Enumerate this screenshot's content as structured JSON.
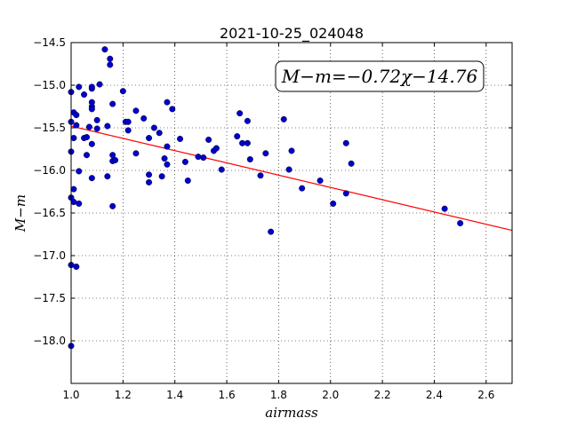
{
  "chart_data": {
    "type": "scatter",
    "title": "2021-10-25_024048",
    "xlabel": "airmass",
    "ylabel": "M−m",
    "xlim": [
      1.0,
      2.7
    ],
    "ylim": [
      -14.5,
      -18.5
    ],
    "y_inverted": true,
    "grid": true,
    "x_ticks": [
      1.0,
      1.2,
      1.4,
      1.6,
      1.8,
      2.0,
      2.2,
      2.4,
      2.6
    ],
    "x_tick_labels": [
      "1.0",
      "1.2",
      "1.4",
      "1.6",
      "1.8",
      "2.0",
      "2.2",
      "2.4",
      "2.6"
    ],
    "y_ticks": [
      -14.5,
      -15.0,
      -15.5,
      -16.0,
      -16.5,
      -17.0,
      -17.5,
      -18.0
    ],
    "y_tick_labels": [
      "−14.5",
      "−15.0",
      "−15.5",
      "−16.0",
      "−16.5",
      "−17.0",
      "−17.5",
      "−18.0"
    ],
    "fit_label": "M−m=−0.72χ−14.76",
    "fit_label_position": "top-right",
    "fit": {
      "slope": -0.72,
      "intercept": -14.76,
      "color": "#ff0000"
    },
    "point_color": "#0000cc",
    "points": [
      [
        1.0,
        -15.08
      ],
      [
        1.0,
        -15.43
      ],
      [
        1.0,
        -15.78
      ],
      [
        1.0,
        -16.32
      ],
      [
        1.0,
        -17.11
      ],
      [
        1.0,
        -18.06
      ],
      [
        1.01,
        -15.32
      ],
      [
        1.01,
        -15.62
      ],
      [
        1.01,
        -16.22
      ],
      [
        1.01,
        -16.37
      ],
      [
        1.02,
        -17.13
      ],
      [
        1.02,
        -15.35
      ],
      [
        1.02,
        -15.47
      ],
      [
        1.03,
        -15.02
      ],
      [
        1.03,
        -16.01
      ],
      [
        1.03,
        -16.39
      ],
      [
        1.05,
        -15.11
      ],
      [
        1.05,
        -15.62
      ],
      [
        1.06,
        -15.61
      ],
      [
        1.06,
        -15.82
      ],
      [
        1.07,
        -15.49
      ],
      [
        1.08,
        -15.04
      ],
      [
        1.08,
        -15.02
      ],
      [
        1.08,
        -15.2
      ],
      [
        1.08,
        -15.25
      ],
      [
        1.08,
        -15.28
      ],
      [
        1.08,
        -15.69
      ],
      [
        1.08,
        -16.09
      ],
      [
        1.1,
        -15.41
      ],
      [
        1.1,
        -15.51
      ],
      [
        1.11,
        -14.99
      ],
      [
        1.13,
        -14.58
      ],
      [
        1.14,
        -15.48
      ],
      [
        1.14,
        -16.07
      ],
      [
        1.15,
        -14.76
      ],
      [
        1.15,
        -14.69
      ],
      [
        1.16,
        -15.22
      ],
      [
        1.16,
        -15.82
      ],
      [
        1.16,
        -15.89
      ],
      [
        1.17,
        -15.88
      ],
      [
        1.16,
        -16.42
      ],
      [
        1.2,
        -15.07
      ],
      [
        1.21,
        -15.43
      ],
      [
        1.22,
        -15.43
      ],
      [
        1.22,
        -15.53
      ],
      [
        1.25,
        -15.3
      ],
      [
        1.25,
        -15.8
      ],
      [
        1.28,
        -15.39
      ],
      [
        1.3,
        -15.62
      ],
      [
        1.3,
        -16.05
      ],
      [
        1.3,
        -16.14
      ],
      [
        1.32,
        -15.5
      ],
      [
        1.34,
        -15.56
      ],
      [
        1.35,
        -16.07
      ],
      [
        1.36,
        -15.86
      ],
      [
        1.37,
        -15.2
      ],
      [
        1.37,
        -15.72
      ],
      [
        1.37,
        -15.93
      ],
      [
        1.39,
        -15.28
      ],
      [
        1.42,
        -15.63
      ],
      [
        1.44,
        -15.9
      ],
      [
        1.45,
        -16.12
      ],
      [
        1.49,
        -15.84
      ],
      [
        1.51,
        -15.85
      ],
      [
        1.53,
        -15.64
      ],
      [
        1.55,
        -15.77
      ],
      [
        1.56,
        -15.74
      ],
      [
        1.58,
        -15.99
      ],
      [
        1.64,
        -15.6
      ],
      [
        1.65,
        -15.33
      ],
      [
        1.66,
        -15.68
      ],
      [
        1.68,
        -15.42
      ],
      [
        1.68,
        -15.68
      ],
      [
        1.69,
        -15.87
      ],
      [
        1.73,
        -16.06
      ],
      [
        1.75,
        -15.8
      ],
      [
        1.77,
        -16.72
      ],
      [
        1.82,
        -15.4
      ],
      [
        1.84,
        -15.99
      ],
      [
        1.85,
        -15.77
      ],
      [
        1.89,
        -16.21
      ],
      [
        1.96,
        -16.12
      ],
      [
        2.01,
        -16.39
      ],
      [
        2.06,
        -15.68
      ],
      [
        2.06,
        -16.27
      ],
      [
        2.08,
        -15.92
      ],
      [
        2.44,
        -16.45
      ],
      [
        2.5,
        -16.62
      ]
    ]
  }
}
